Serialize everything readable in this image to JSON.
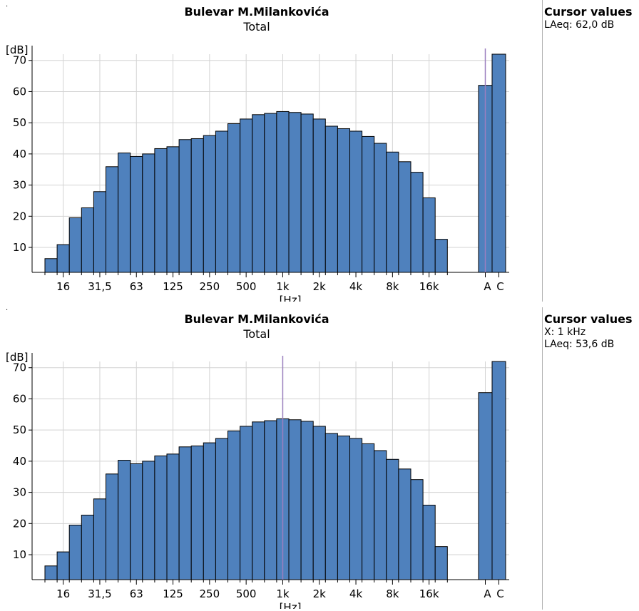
{
  "charts": [
    {
      "title": "Bulevar M.Milankovića",
      "subtitle": "Total",
      "cursor": {
        "heading": "Cursor values",
        "lines": [
          "LAeq: 62,0 dB"
        ]
      }
    },
    {
      "title": "Bulevar M.Milankovića",
      "subtitle": "Total",
      "cursor": {
        "heading": "Cursor values",
        "lines": [
          "X: 1 kHz",
          "LAeq: 53,6 dB"
        ]
      }
    }
  ],
  "colors": {
    "bar": "#4f81bd",
    "cursor": "#9b7fbf",
    "grid": "#d3d3d3"
  },
  "chart_data": [
    {
      "type": "bar",
      "ylabel": "[dB]",
      "xlabel": "[Hz]",
      "ylim": [
        2,
        72
      ],
      "yticks": [
        10,
        20,
        30,
        40,
        50,
        60,
        70
      ],
      "x_tick_labels": [
        "16",
        "31,5",
        "63",
        "125",
        "250",
        "500",
        "1k",
        "2k",
        "4k",
        "8k",
        "16k"
      ],
      "bands": [
        "12,5",
        "16",
        "20",
        "25",
        "31,5",
        "40",
        "50",
        "63",
        "80",
        "100",
        "125",
        "160",
        "200",
        "250",
        "315",
        "400",
        "500",
        "630",
        "800",
        "1k",
        "1,25k",
        "1,6k",
        "2k",
        "2,5k",
        "3,15k",
        "4k",
        "5k",
        "6,3k",
        "8k",
        "10k",
        "12,5k",
        "16k",
        "20k"
      ],
      "values": [
        6.4,
        10.9,
        19.5,
        22.7,
        27.9,
        35.9,
        40.3,
        39.2,
        40.0,
        41.7,
        42.3,
        44.6,
        44.9,
        45.9,
        47.3,
        49.7,
        51.2,
        52.6,
        53.0,
        53.6,
        53.3,
        52.8,
        51.2,
        48.9,
        48.1,
        47.3,
        45.6,
        43.4,
        40.6,
        37.5,
        34.1,
        25.9,
        12.6
      ],
      "overall_categories": [
        "A",
        "C"
      ],
      "overall_values": [
        62.0,
        72.0
      ],
      "cursor_at": "A",
      "grid": true
    },
    {
      "type": "bar",
      "ylabel": "[dB]",
      "xlabel": "[Hz]",
      "ylim": [
        2,
        72
      ],
      "yticks": [
        10,
        20,
        30,
        40,
        50,
        60,
        70
      ],
      "x_tick_labels": [
        "16",
        "31,5",
        "63",
        "125",
        "250",
        "500",
        "1k",
        "2k",
        "4k",
        "8k",
        "16k"
      ],
      "bands": [
        "12,5",
        "16",
        "20",
        "25",
        "31,5",
        "40",
        "50",
        "63",
        "80",
        "100",
        "125",
        "160",
        "200",
        "250",
        "315",
        "400",
        "500",
        "630",
        "800",
        "1k",
        "1,25k",
        "1,6k",
        "2k",
        "2,5k",
        "3,15k",
        "4k",
        "5k",
        "6,3k",
        "8k",
        "10k",
        "12,5k",
        "16k",
        "20k"
      ],
      "values": [
        6.4,
        10.9,
        19.5,
        22.7,
        27.9,
        35.9,
        40.3,
        39.2,
        40.0,
        41.7,
        42.3,
        44.6,
        44.9,
        45.9,
        47.3,
        49.7,
        51.2,
        52.6,
        53.0,
        53.6,
        53.3,
        52.8,
        51.2,
        48.9,
        48.1,
        47.3,
        45.6,
        43.4,
        40.6,
        37.5,
        34.1,
        25.9,
        12.6
      ],
      "overall_categories": [
        "A",
        "C"
      ],
      "overall_values": [
        62.0,
        72.0
      ],
      "cursor_at": "1k",
      "grid": true
    }
  ]
}
